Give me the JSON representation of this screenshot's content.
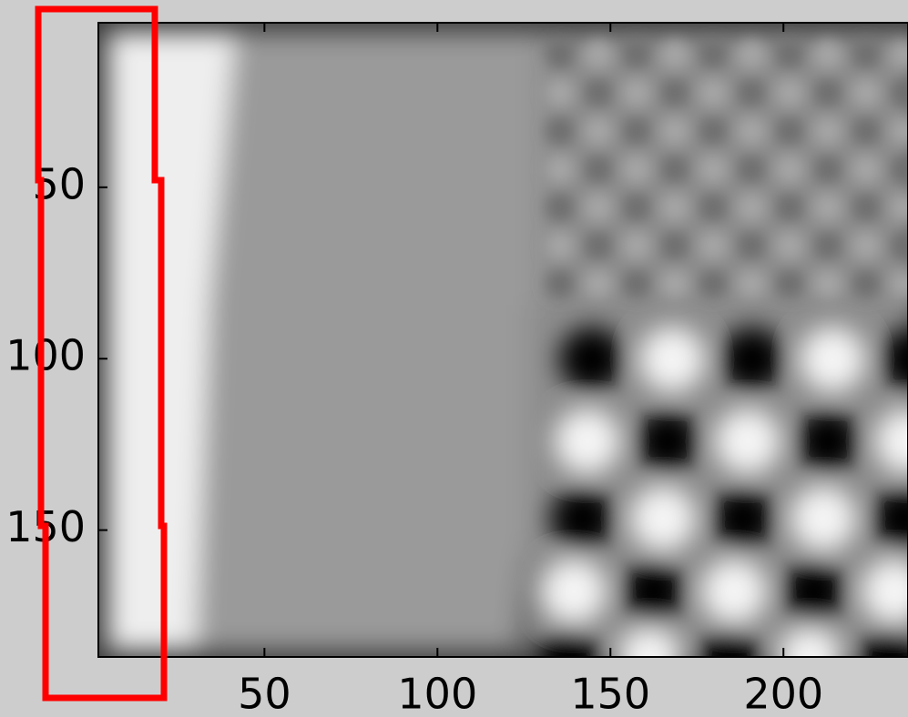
{
  "chart_data": {
    "type": "image",
    "xlim": [
      2,
      236
    ],
    "ylim": [
      2,
      187
    ],
    "y_reversed": true,
    "xticks": [
      50,
      100,
      150,
      200
    ],
    "yticks": [
      50,
      100,
      150
    ]
  }
}
